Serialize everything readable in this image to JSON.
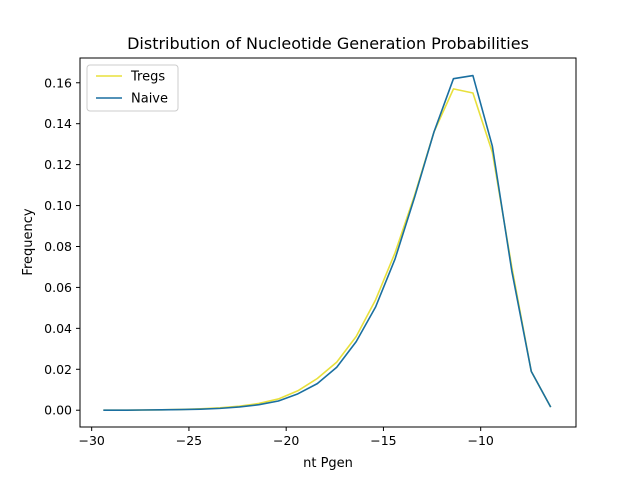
{
  "chart_data": {
    "type": "line",
    "title": "Distribution of Nucleotide Generation Probabilities",
    "xlabel": "nt Pgen",
    "ylabel": "Frequency",
    "xlim": [
      -30.6,
      -5.1
    ],
    "ylim": [
      -0.0082,
      0.1721
    ],
    "xticks": [
      -30,
      -25,
      -20,
      -15,
      -10
    ],
    "xtick_labels": [
      "−30",
      "−25",
      "−20",
      "−15",
      "−10"
    ],
    "yticks": [
      0.0,
      0.02,
      0.04,
      0.06,
      0.08,
      0.1,
      0.12,
      0.14,
      0.16
    ],
    "ytick_labels": [
      "0.00",
      "0.02",
      "0.04",
      "0.06",
      "0.08",
      "0.10",
      "0.12",
      "0.14",
      "0.16"
    ],
    "grid": false,
    "legend_position": "top-left",
    "x": [
      -29.4,
      -28.4,
      -27.4,
      -26.4,
      -25.4,
      -24.4,
      -23.4,
      -22.4,
      -21.4,
      -20.4,
      -19.4,
      -18.4,
      -17.4,
      -16.4,
      -15.4,
      -14.4,
      -13.4,
      -12.4,
      -11.4,
      -10.4,
      -9.4,
      -8.4,
      -7.4,
      -6.4
    ],
    "series": [
      {
        "name": "Tregs",
        "color": "#e8e03c",
        "values": [
          0.0,
          0.0,
          0.0001,
          0.0002,
          0.0004,
          0.0007,
          0.0012,
          0.002,
          0.0033,
          0.0055,
          0.0095,
          0.0155,
          0.0235,
          0.036,
          0.054,
          0.077,
          0.105,
          0.136,
          0.157,
          0.155,
          0.126,
          0.07,
          0.019,
          0.0015
        ]
      },
      {
        "name": "Naive",
        "color": "#1a6fa0",
        "values": [
          0.0,
          0.0,
          0.0001,
          0.0002,
          0.0003,
          0.0005,
          0.0009,
          0.0016,
          0.0027,
          0.0045,
          0.008,
          0.013,
          0.021,
          0.0335,
          0.0505,
          0.074,
          0.104,
          0.136,
          0.162,
          0.1635,
          0.129,
          0.068,
          0.019,
          0.0015
        ]
      }
    ]
  }
}
